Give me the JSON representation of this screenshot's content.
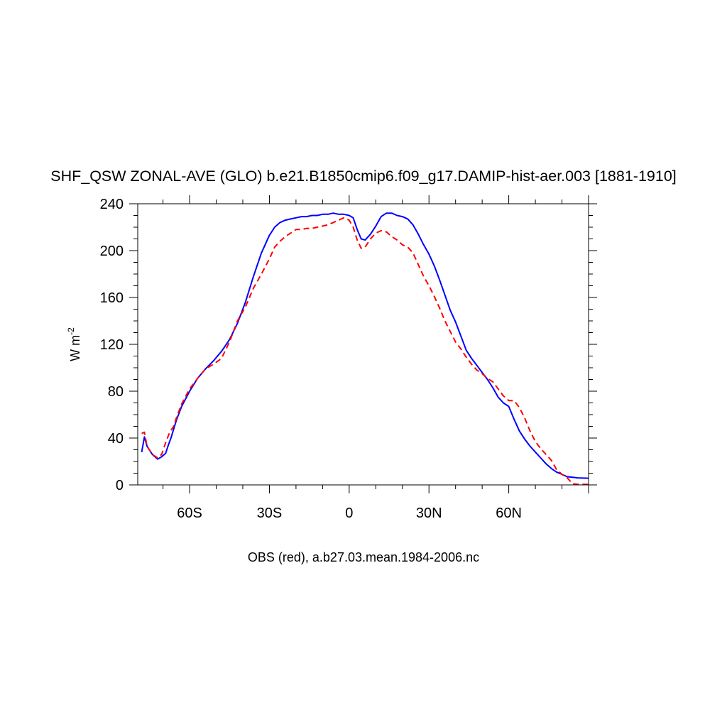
{
  "chart_data": {
    "type": "line",
    "title": "SHF_QSW ZONAL-AVE (GLO) b.e21.B1850cmip6.f09_g17.DAMIP-hist-aer.003 [1881-1910]",
    "xlabel": "OBS (red), a.b27.03.mean.1984-2006.nc",
    "ylabel_main": "W m",
    "ylabel_sup": "-2",
    "xlim": [
      -79.5,
      90
    ],
    "ylim": [
      0,
      240
    ],
    "xticks": [
      {
        "value": -60,
        "label": "60S"
      },
      {
        "value": -30,
        "label": "30S"
      },
      {
        "value": 0,
        "label": "0"
      },
      {
        "value": 30,
        "label": "30N"
      },
      {
        "value": 60,
        "label": "60N"
      }
    ],
    "yticks": [
      {
        "value": 0,
        "label": "0"
      },
      {
        "value": 40,
        "label": "40"
      },
      {
        "value": 80,
        "label": "80"
      },
      {
        "value": 120,
        "label": "120"
      },
      {
        "value": 160,
        "label": "160"
      },
      {
        "value": 200,
        "label": "200"
      },
      {
        "value": 240,
        "label": "240"
      }
    ],
    "grid": false,
    "series": [
      {
        "color": "#0000ff",
        "dash": "solid",
        "x": [
          -78,
          -77,
          -76,
          -74,
          -72,
          -70.5,
          -69,
          -68,
          -67,
          -65,
          -63,
          -60,
          -57,
          -54,
          -51,
          -48,
          -45,
          -42,
          -39,
          -36,
          -33,
          -30,
          -28,
          -26,
          -24,
          -22,
          -20,
          -18,
          -16,
          -14,
          -12,
          -10,
          -8,
          -6,
          -4,
          -2,
          0,
          1.5,
          3,
          4.5,
          6,
          8,
          10,
          12,
          14,
          16,
          18,
          20,
          22,
          24,
          26,
          28,
          30,
          32,
          34,
          36,
          38,
          40,
          42,
          44,
          46,
          48,
          50,
          52,
          54,
          56,
          58,
          60,
          62,
          64,
          66,
          68,
          70,
          72,
          74,
          76,
          78,
          80,
          82,
          84,
          86,
          88,
          90
        ],
        "y": [
          28,
          41,
          33,
          26,
          22,
          24,
          27,
          34,
          40,
          55,
          67,
          80,
          91,
          99,
          106,
          114,
          124,
          138,
          156,
          178,
          198,
          213,
          220,
          224,
          226,
          227,
          228,
          229,
          229,
          230,
          230,
          231,
          231,
          232,
          231,
          231,
          230,
          228,
          218,
          210,
          209,
          214,
          221,
          229,
          232,
          232,
          230,
          229,
          227,
          222,
          214,
          205,
          197,
          187,
          175,
          162,
          149,
          139,
          127,
          115,
          108,
          102,
          96,
          90,
          83,
          75,
          70,
          67,
          56,
          46,
          39,
          33,
          28,
          23,
          18,
          14,
          11,
          9,
          7,
          6.5,
          6,
          5.8,
          5.7
        ]
      },
      {
        "color": "#ff0000",
        "dash": "dashed",
        "x": [
          -78,
          -77,
          -76,
          -74,
          -72,
          -70.5,
          -69,
          -67.5,
          -66,
          -65,
          -63,
          -60,
          -57,
          -54,
          -51,
          -48,
          -45,
          -42,
          -39,
          -36,
          -33,
          -30,
          -28,
          -26,
          -24,
          -22,
          -20,
          -18,
          -16,
          -14,
          -12,
          -10,
          -8,
          -6,
          -4,
          -2,
          0,
          1.5,
          3,
          4.5,
          6,
          8,
          10,
          12,
          14,
          16,
          18,
          20,
          22,
          24,
          26,
          28,
          30,
          32,
          34,
          36,
          38,
          40,
          42,
          44,
          46,
          48,
          50,
          52,
          54,
          56,
          58,
          60,
          62,
          64,
          66,
          68,
          70,
          72,
          74,
          76,
          78,
          80,
          82,
          84,
          86,
          88,
          90
        ],
        "y": [
          44,
          45,
          33,
          26,
          23,
          26,
          36,
          45,
          50,
          57,
          69,
          82,
          91,
          99,
          103,
          108,
          122,
          140,
          152,
          168,
          180,
          193,
          203,
          208,
          212,
          215,
          218,
          218,
          219,
          219,
          220,
          221,
          222,
          224,
          226,
          228,
          226,
          220,
          209,
          202,
          203,
          210,
          215,
          217,
          216,
          212,
          209,
          205,
          203,
          198,
          188,
          178,
          170,
          161,
          151,
          140,
          131,
          122,
          116,
          109,
          103,
          98,
          95,
          91,
          88,
          82,
          76,
          72,
          72,
          66,
          57,
          46,
          37,
          31,
          26,
          21,
          13,
          9,
          6,
          1,
          0.5,
          0.5,
          0.5
        ]
      }
    ]
  }
}
